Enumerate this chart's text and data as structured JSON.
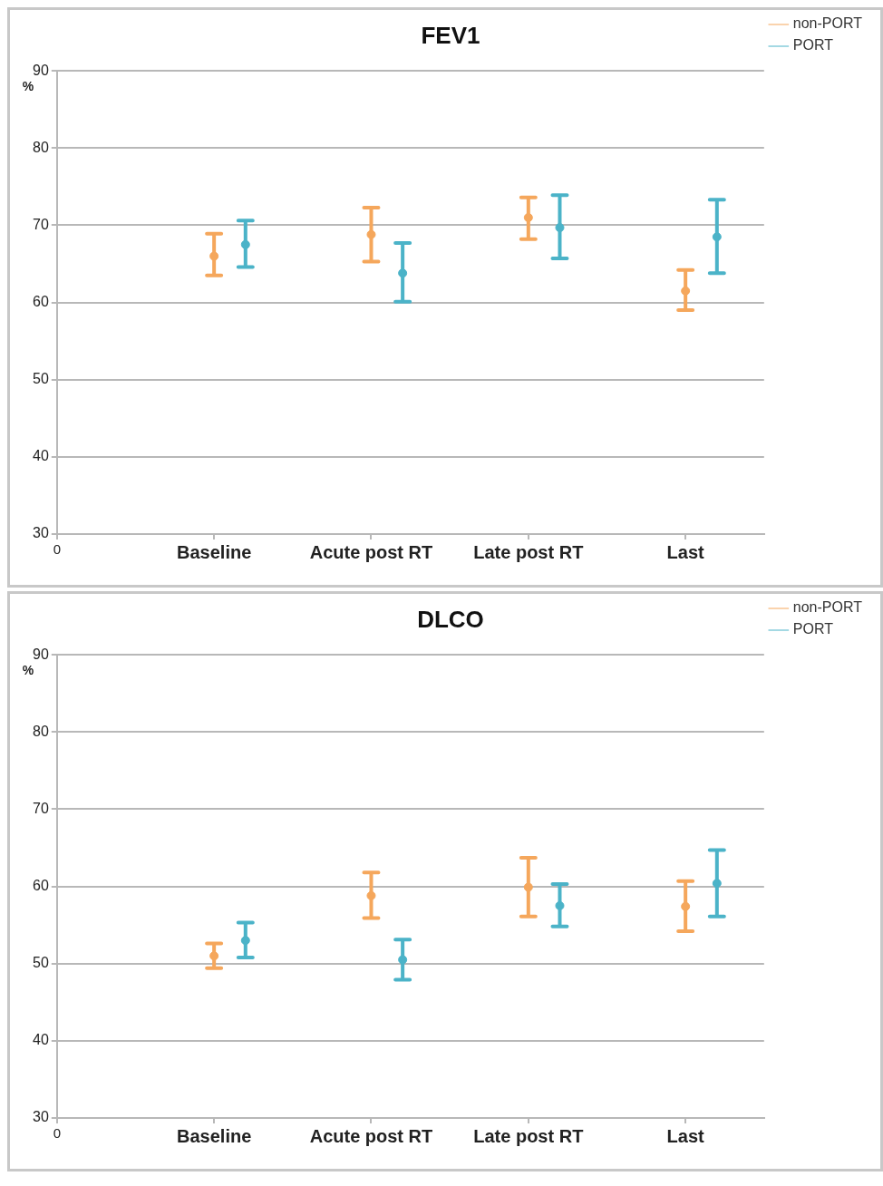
{
  "chart_data": [
    {
      "type": "scatter",
      "title": "FEV1",
      "ylabel": "%",
      "marker": "circle",
      "categories": [
        "0",
        null,
        null,
        null,
        null,
        "Baseline",
        null,
        null,
        null,
        null,
        "Acute post RT",
        null,
        null,
        null,
        null,
        "Late post RT",
        null,
        null,
        null,
        null,
        "Last",
        null,
        null
      ],
      "ylim": [
        30,
        90
      ],
      "yticks": [
        30,
        40,
        50,
        60,
        70,
        80,
        90
      ],
      "grid": "y",
      "legend": "top right",
      "series": [
        {
          "name": "non-PORT",
          "color": "#f5a75c",
          "values": [
            null,
            null,
            null,
            null,
            null,
            66,
            null,
            null,
            null,
            null,
            68.8,
            null,
            null,
            null,
            null,
            71,
            null,
            null,
            null,
            null,
            61.5,
            null,
            null
          ],
          "errors": [
            null,
            null,
            null,
            null,
            null,
            [
              63.5,
              68.9
            ],
            null,
            null,
            null,
            null,
            [
              65.3,
              72.3
            ],
            null,
            null,
            null,
            null,
            [
              68.2,
              73.6
            ],
            null,
            null,
            null,
            null,
            [
              59,
              64.2
            ],
            null,
            null
          ]
        },
        {
          "name": "PORT",
          "color": "#4bb3c8",
          "values": [
            null,
            null,
            null,
            null,
            null,
            null,
            67.5,
            null,
            null,
            null,
            null,
            63.8,
            null,
            null,
            null,
            null,
            69.7,
            null,
            null,
            null,
            null,
            68.5,
            null
          ],
          "errors": [
            null,
            null,
            null,
            null,
            null,
            null,
            [
              64.6,
              70.6
            ],
            null,
            null,
            null,
            null,
            [
              60.1,
              67.7
            ],
            null,
            null,
            null,
            null,
            [
              65.7,
              73.9
            ],
            null,
            null,
            null,
            null,
            [
              63.8,
              73.3
            ],
            null
          ]
        }
      ]
    },
    {
      "type": "scatter",
      "title": "DLCO",
      "ylabel": "%",
      "marker": "circle",
      "categories": [
        "0",
        null,
        null,
        null,
        null,
        "Baseline",
        null,
        null,
        null,
        null,
        "Acute post RT",
        null,
        null,
        null,
        null,
        "Late post RT",
        null,
        null,
        null,
        null,
        "Last",
        null,
        null
      ],
      "ylim": [
        30,
        90
      ],
      "yticks": [
        30,
        40,
        50,
        60,
        70,
        80,
        90
      ],
      "grid": "y",
      "legend": "top right",
      "series": [
        {
          "name": "non-PORT",
          "color": "#f5a75c",
          "values": [
            null,
            null,
            null,
            null,
            null,
            51,
            null,
            null,
            null,
            null,
            58.8,
            null,
            null,
            null,
            null,
            59.9,
            null,
            null,
            null,
            null,
            57.4,
            null,
            null
          ],
          "errors": [
            null,
            null,
            null,
            null,
            null,
            [
              49.4,
              52.6
            ],
            null,
            null,
            null,
            null,
            [
              55.9,
              61.8
            ],
            null,
            null,
            null,
            null,
            [
              56.1,
              63.7
            ],
            null,
            null,
            null,
            null,
            [
              54.2,
              60.7
            ],
            null,
            null
          ]
        },
        {
          "name": "PORT",
          "color": "#4bb3c8",
          "values": [
            null,
            null,
            null,
            null,
            null,
            null,
            53,
            null,
            null,
            null,
            null,
            50.5,
            null,
            null,
            null,
            null,
            57.5,
            null,
            null,
            null,
            null,
            60.4,
            null
          ],
          "errors": [
            null,
            null,
            null,
            null,
            null,
            null,
            [
              50.8,
              55.3
            ],
            null,
            null,
            null,
            null,
            [
              47.9,
              53.1
            ],
            null,
            null,
            null,
            null,
            [
              54.8,
              60.3
            ],
            null,
            null,
            null,
            null,
            [
              56.1,
              64.7
            ],
            null
          ]
        }
      ]
    }
  ]
}
